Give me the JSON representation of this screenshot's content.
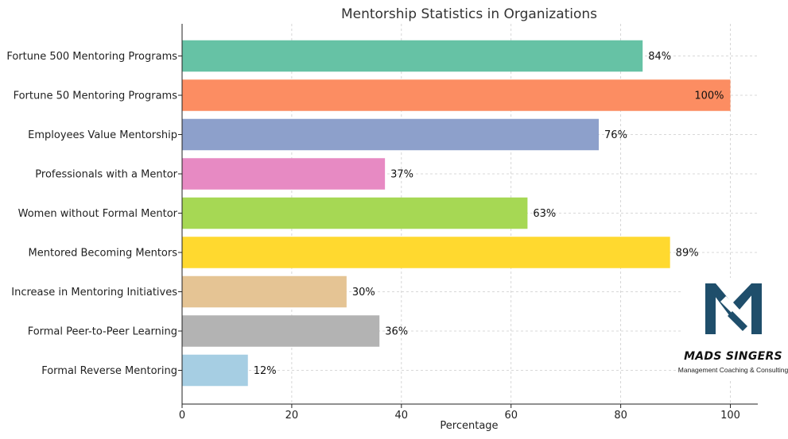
{
  "chart_data": {
    "type": "bar",
    "orientation": "horizontal",
    "title": "Mentorship Statistics in Organizations",
    "xlabel": "Percentage",
    "ylabel": "",
    "xlim": [
      0,
      105
    ],
    "xticks": [
      0,
      20,
      40,
      60,
      80,
      100
    ],
    "grid": true,
    "categories": [
      "Fortune 500 Mentoring Programs",
      "Fortune 50 Mentoring Programs",
      "Employees Value Mentorship",
      "Professionals with a Mentor",
      "Women without Formal Mentor",
      "Mentored Becoming Mentors",
      "Increase in Mentoring Initiatives",
      "Formal Peer-to-Peer Learning",
      "Formal Reverse Mentoring"
    ],
    "values": [
      84,
      100,
      76,
      37,
      63,
      89,
      30,
      36,
      12
    ],
    "data_labels": [
      "84%",
      "100%",
      "76%",
      "37%",
      "63%",
      "89%",
      "30%",
      "36%",
      "12%"
    ],
    "colors": [
      "#66c2a5",
      "#fc8d62",
      "#8da0cb",
      "#e78ac3",
      "#a6d854",
      "#ffd92f",
      "#e5c494",
      "#b3b3b3",
      "#a6cee3"
    ]
  },
  "logo": {
    "name": "MADS SINGERS",
    "tagline": "Management Coaching & Consulting",
    "color": "#1f4e6b"
  }
}
